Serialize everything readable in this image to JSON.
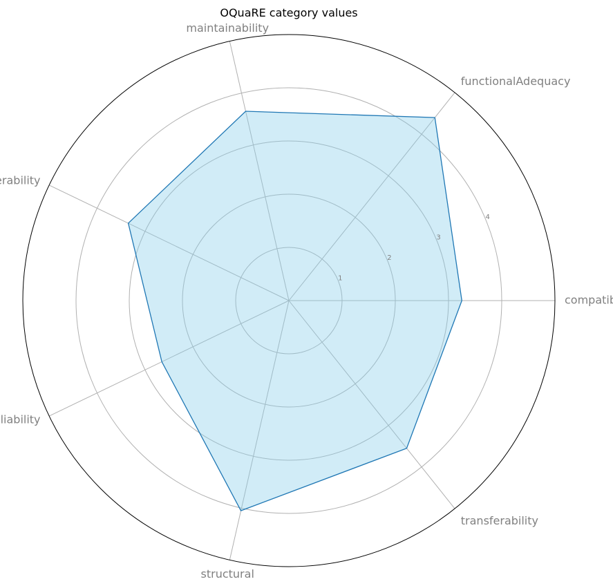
{
  "chart_data": {
    "type": "radar",
    "title": "OQuaRE category values",
    "categories": [
      "compatibility",
      "functionalAdequacy",
      "maintainability",
      "operability",
      "reliability",
      "structural",
      "transferability"
    ],
    "values": [
      3.25,
      4.4,
      3.65,
      3.35,
      2.65,
      4.05,
      3.55
    ],
    "rmax": 5,
    "rticks": [
      1,
      2,
      3,
      4
    ],
    "grid": true,
    "colors": {
      "line": "#1f77b4",
      "fill": "#87ceeb",
      "grid": "#b0b0b0",
      "label": "#808080",
      "frame": "#000000"
    }
  }
}
